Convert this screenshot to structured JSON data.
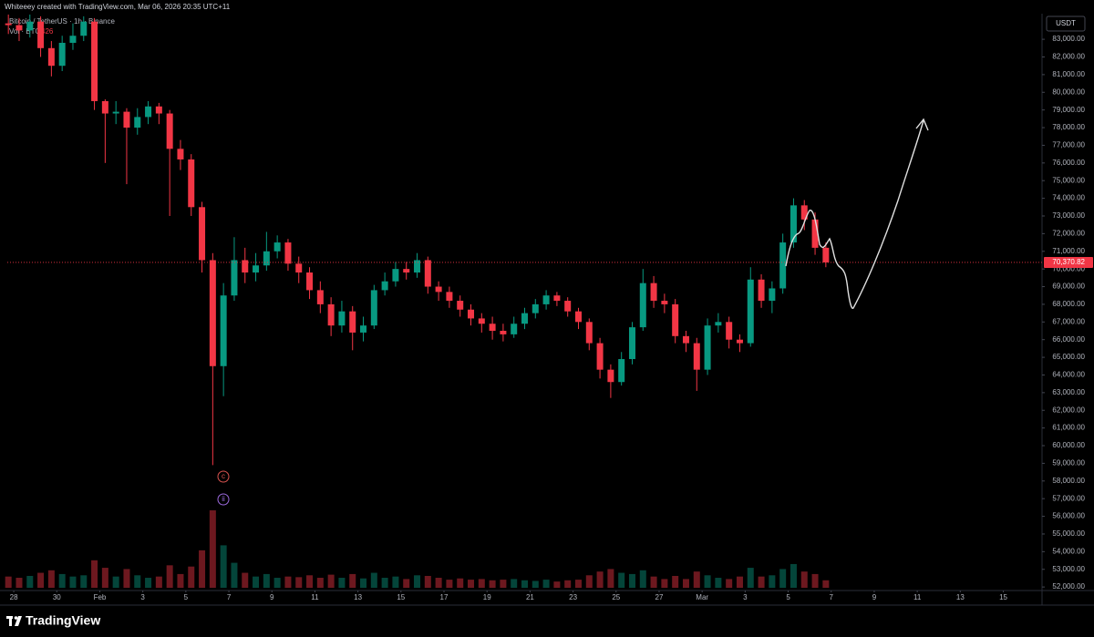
{
  "header": {
    "attribution": "Whiteeey created with TradingView.com, Mar 06, 2026 20:35 UTC+11"
  },
  "chart_data": {
    "type": "candlestick",
    "symbol": "Bitcoin / TetherUS · 1h · Binance",
    "volume_title": "Vol · BTC",
    "volume_last": 426,
    "currency": "USDT",
    "up_color": "#089981",
    "down_color": "#f23645",
    "grid": false,
    "x": [
      -0.25,
      0.25,
      0.75,
      1.25,
      1.75,
      2.25,
      2.75,
      3.25,
      3.75,
      4.25,
      4.75,
      5.25,
      5.75,
      6.25,
      6.75,
      7.25,
      7.75,
      8.25,
      8.75,
      9.25,
      9.75,
      10.25,
      10.75,
      11.25,
      11.75,
      12.25,
      12.75,
      13.25,
      13.75,
      14.25,
      14.75,
      15.25,
      15.75,
      16.25,
      16.75,
      17.25,
      17.75,
      18.25,
      18.75,
      19.25,
      19.75,
      20.25,
      20.75,
      21.25,
      21.75,
      22.25,
      22.75,
      23.25,
      23.75,
      24.25,
      24.75,
      25.25,
      25.75,
      26.25,
      26.75,
      27.25,
      27.75,
      28.25,
      28.75,
      29.25,
      29.75,
      30.25,
      30.75,
      31.25,
      31.75,
      32.25,
      32.75,
      33.25,
      33.75,
      34.25,
      34.75,
      35.25,
      35.75,
      36.25,
      36.75,
      37.25,
      37.75
    ],
    "open": [
      83900,
      83800,
      83500,
      84000,
      82500,
      81500,
      82800,
      83200,
      84000,
      79500,
      78800,
      78900,
      78000,
      78600,
      79200,
      78800,
      76800,
      76200,
      73500,
      70500,
      64500,
      68500,
      70500,
      69800,
      70200,
      71000,
      71500,
      70300,
      69800,
      68800,
      68000,
      66800,
      67600,
      66400,
      66800,
      68800,
      69300,
      70000,
      69800,
      70500,
      69000,
      68700,
      68200,
      67700,
      67200,
      66900,
      66500,
      66300,
      66900,
      67500,
      68000,
      68500,
      68200,
      67600,
      67000,
      65800,
      64300,
      63600,
      64900,
      66700,
      69200,
      68200,
      68000,
      66200,
      65800,
      64300,
      66800,
      67000,
      66000,
      65800,
      69400,
      68200,
      68900,
      71500,
      73600,
      72800,
      71200
    ],
    "high": [
      84400,
      84200,
      84400,
      84300,
      82900,
      83200,
      83900,
      84300,
      84200,
      79600,
      79500,
      79100,
      79100,
      79500,
      79400,
      79000,
      77300,
      76500,
      73800,
      70900,
      69200,
      71800,
      71200,
      70900,
      72100,
      71900,
      71700,
      70700,
      70100,
      69300,
      68400,
      68200,
      67900,
      67300,
      69100,
      69800,
      70400,
      70400,
      70900,
      70700,
      69300,
      69000,
      68500,
      68000,
      67500,
      67300,
      66900,
      67300,
      67800,
      68300,
      68800,
      68700,
      68400,
      67800,
      67200,
      66100,
      64600,
      65300,
      67000,
      70000,
      69600,
      68600,
      68300,
      66500,
      66100,
      67200,
      67500,
      67300,
      66300,
      70100,
      69700,
      69300,
      72000,
      74000,
      73900,
      73200,
      71500
    ],
    "low": [
      83300,
      82900,
      83100,
      82000,
      80900,
      81200,
      82400,
      82900,
      79000,
      76000,
      78200,
      74800,
      77600,
      78200,
      78200,
      73000,
      75600,
      73000,
      69800,
      58900,
      62800,
      68200,
      69200,
      69300,
      69900,
      70600,
      69900,
      69200,
      68300,
      67500,
      66200,
      66400,
      65400,
      65900,
      66600,
      68500,
      69000,
      69400,
      69500,
      68600,
      68200,
      67800,
      67300,
      66800,
      66400,
      66000,
      65900,
      66100,
      66600,
      67200,
      67700,
      67900,
      67300,
      66600,
      65400,
      63800,
      62700,
      63400,
      64600,
      66500,
      67800,
      67500,
      65800,
      65300,
      63100,
      64000,
      66400,
      65500,
      65300,
      65600,
      67800,
      67500,
      68600,
      71200,
      72200,
      70800,
      70100
    ],
    "close": [
      83800,
      83500,
      84000,
      82500,
      81500,
      82800,
      83200,
      84000,
      79500,
      78800,
      78900,
      78000,
      78600,
      79200,
      78800,
      76800,
      76200,
      73500,
      70500,
      64500,
      68500,
      70500,
      69800,
      70200,
      71000,
      71500,
      70300,
      69800,
      68800,
      68000,
      66800,
      67600,
      66400,
      66800,
      68800,
      69300,
      70000,
      69800,
      70500,
      69000,
      68700,
      68200,
      67700,
      67200,
      66900,
      66500,
      66300,
      66900,
      67500,
      68000,
      68500,
      68200,
      67600,
      67000,
      65800,
      64300,
      63600,
      64900,
      66700,
      69200,
      68200,
      68000,
      66200,
      65800,
      64300,
      66800,
      67000,
      66000,
      65800,
      69400,
      68200,
      68900,
      71500,
      73600,
      72800,
      71200,
      70370.82
    ],
    "volume": [
      9000,
      8000,
      9500,
      12000,
      14000,
      11000,
      9000,
      10000,
      22000,
      16000,
      9000,
      15000,
      10000,
      8000,
      9000,
      18000,
      11000,
      17000,
      30000,
      62000,
      34000,
      20000,
      12000,
      9000,
      11000,
      8000,
      9000,
      8500,
      10000,
      8000,
      10500,
      8000,
      11000,
      7500,
      12000,
      8000,
      9000,
      7000,
      10000,
      9500,
      8000,
      6500,
      7500,
      6500,
      7000,
      6000,
      6500,
      7000,
      6000,
      5500,
      6500,
      5000,
      6000,
      6500,
      10000,
      13000,
      15000,
      12000,
      11000,
      14000,
      9000,
      7000,
      9500,
      7000,
      13000,
      10000,
      8000,
      7000,
      9000,
      16000,
      9000,
      10000,
      15000,
      19000,
      13000,
      11000,
      6000
    ],
    "xlim": [
      -0.3,
      47.8
    ],
    "xticks": [
      {
        "value": 0,
        "label": "28"
      },
      {
        "value": 2,
        "label": "30"
      },
      {
        "value": 4,
        "label": "Feb"
      },
      {
        "value": 6,
        "label": "3"
      },
      {
        "value": 8,
        "label": "5"
      },
      {
        "value": 10,
        "label": "7"
      },
      {
        "value": 12,
        "label": "9"
      },
      {
        "value": 14,
        "label": "11"
      },
      {
        "value": 16,
        "label": "13"
      },
      {
        "value": 18,
        "label": "15"
      },
      {
        "value": 20,
        "label": "17"
      },
      {
        "value": 22,
        "label": "19"
      },
      {
        "value": 24,
        "label": "21"
      },
      {
        "value": 26,
        "label": "23"
      },
      {
        "value": 28,
        "label": "25"
      },
      {
        "value": 30,
        "label": "27"
      },
      {
        "value": 32,
        "label": "Mar"
      },
      {
        "value": 34,
        "label": "3"
      },
      {
        "value": 36,
        "label": "5"
      },
      {
        "value": 38,
        "label": "7"
      },
      {
        "value": 40,
        "label": "9"
      },
      {
        "value": 42,
        "label": "11"
      },
      {
        "value": 44,
        "label": "13"
      },
      {
        "value": 46,
        "label": "15"
      }
    ],
    "ylim": [
      51800,
      84450
    ],
    "yticks": [
      {
        "value": 83000,
        "label": "83,000.00"
      },
      {
        "value": 82000,
        "label": "82,000.00"
      },
      {
        "value": 81000,
        "label": "81,000.00"
      },
      {
        "value": 80000,
        "label": "80,000.00"
      },
      {
        "value": 79000,
        "label": "79,000.00"
      },
      {
        "value": 78000,
        "label": "78,000.00"
      },
      {
        "value": 77000,
        "label": "77,000.00"
      },
      {
        "value": 76000,
        "label": "76,000.00"
      },
      {
        "value": 75000,
        "label": "75,000.00"
      },
      {
        "value": 74000,
        "label": "74,000.00"
      },
      {
        "value": 73000,
        "label": "73,000.00"
      },
      {
        "value": 72000,
        "label": "72,000.00"
      },
      {
        "value": 71000,
        "label": "71,000.00"
      },
      {
        "value": 70000,
        "label": "70,000.00"
      },
      {
        "value": 69000,
        "label": "69,000.00"
      },
      {
        "value": 68000,
        "label": "68,000.00"
      },
      {
        "value": 67000,
        "label": "67,000.00"
      },
      {
        "value": 66000,
        "label": "66,000.00"
      },
      {
        "value": 65000,
        "label": "65,000.00"
      },
      {
        "value": 64000,
        "label": "64,000.00"
      },
      {
        "value": 63000,
        "label": "63,000.00"
      },
      {
        "value": 62000,
        "label": "62,000.00"
      },
      {
        "value": 61000,
        "label": "61,000.00"
      },
      {
        "value": 60000,
        "label": "60,000.00"
      },
      {
        "value": 59000,
        "label": "59,000.00"
      },
      {
        "value": 58000,
        "label": "58,000.00"
      },
      {
        "value": 57000,
        "label": "57,000.00"
      },
      {
        "value": 56000,
        "label": "56,000.00"
      },
      {
        "value": 55000,
        "label": "55,000.00"
      },
      {
        "value": 54000,
        "label": "54,000.00"
      },
      {
        "value": 53000,
        "label": "53,000.00"
      },
      {
        "value": 52000,
        "label": "52,000.00"
      }
    ],
    "last_price": {
      "value": 70370.82,
      "label": "70,370.82"
    },
    "annotations": [
      {
        "text": "c",
        "color": "#d9534f"
      },
      {
        "text": "ii",
        "color": "#9c6ade"
      }
    ]
  },
  "footer": {
    "brand": "TradingView"
  }
}
